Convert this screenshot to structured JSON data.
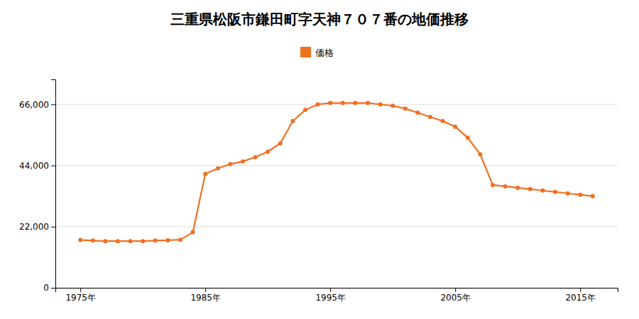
{
  "chart_data": {
    "type": "line",
    "title": "三重県松阪市鎌田町字天神７０７番の地価推移",
    "x": [
      1975,
      1976,
      1977,
      1978,
      1979,
      1980,
      1981,
      1982,
      1983,
      1984,
      1985,
      1986,
      1987,
      1988,
      1989,
      1990,
      1991,
      1992,
      1993,
      1994,
      1995,
      1996,
      1997,
      1998,
      1999,
      2000,
      2001,
      2002,
      2003,
      2004,
      2005,
      2006,
      2007,
      2008,
      2009,
      2010,
      2011,
      2012,
      2013,
      2014,
      2015,
      2016
    ],
    "series": [
      {
        "name": "価格",
        "color": "#F07020",
        "marker": "circle",
        "values": [
          17200,
          17000,
          16800,
          16800,
          16800,
          16800,
          17000,
          17100,
          17300,
          20000,
          41000,
          43000,
          44500,
          45500,
          47000,
          49000,
          52000,
          60000,
          64000,
          66000,
          66500,
          66500,
          66500,
          66500,
          66000,
          65500,
          64500,
          63000,
          61500,
          60000,
          58000,
          54000,
          48000,
          37000,
          36500,
          36000,
          35500,
          35000,
          34500,
          34000,
          33500,
          33000
        ]
      }
    ],
    "xlim": [
      1973,
      2018
    ],
    "xticks": [
      {
        "value": 1975,
        "label": "1975年"
      },
      {
        "value": 1985,
        "label": "1985年"
      },
      {
        "value": 1995,
        "label": "1995年"
      },
      {
        "value": 2005,
        "label": "2005年"
      },
      {
        "value": 2015,
        "label": "2015年"
      }
    ],
    "ylim": [
      0,
      75000
    ],
    "yticks": [
      0,
      {
        "value": 22000,
        "label": "22,000"
      },
      {
        "value": 44000,
        "label": "44,000"
      },
      {
        "value": 66000,
        "label": "66,000"
      }
    ],
    "grid": true,
    "legend": "top"
  }
}
